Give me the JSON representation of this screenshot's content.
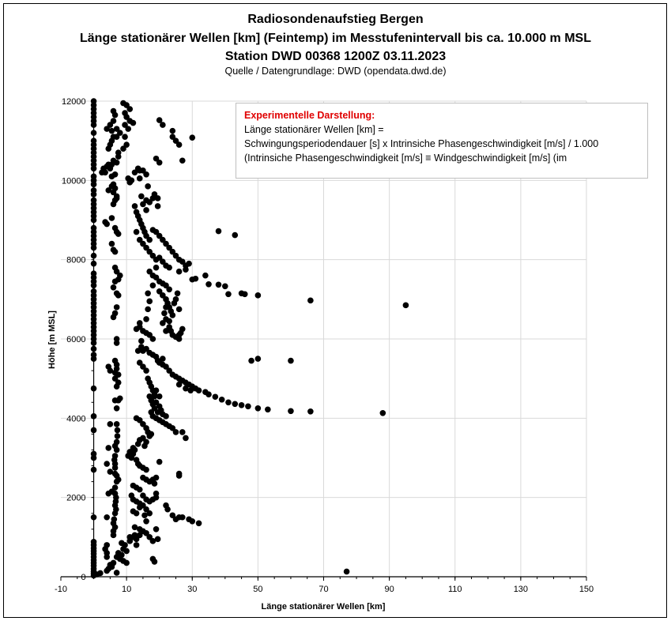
{
  "chart_data": {
    "type": "scatter",
    "title": [
      "Radiosondenaufstieg Bergen",
      "Länge stationärer Wellen [km] (Feintemp) im Messtufenintervall bis ca. 10.000 m MSL",
      "Station DWD 00368 1200Z 03.11.2023"
    ],
    "subtitle": "Quelle / Datengrundlage: DWD (opendata.dwd.de)",
    "xlabel": "Länge stationärer Wellen [km]",
    "ylabel": "Höhe [m MSL]",
    "xlim": [
      -10,
      150
    ],
    "ylim": [
      0,
      12000
    ],
    "xticks": [
      -10,
      10,
      30,
      50,
      70,
      90,
      110,
      130,
      150
    ],
    "yticks": [
      0,
      2000,
      4000,
      6000,
      8000,
      10000,
      12000
    ],
    "grid": true,
    "marker_color": "#000000",
    "annotation": {
      "heading": "Experimentelle Darstellung:",
      "lines": [
        "Länge stationärer Wellen [km] =",
        "Schwingungsperiodendauer [s] x Intrinsiche Phasengeschwindigkeit [m/s]  / 1.000",
        "(Intrinsiche Phasengeschwindigkeit [m/s] ≡ Windgeschwindigkeit [m/s] (im"
      ],
      "heading_color": "#e00000"
    },
    "zero_column_y": [
      30,
      80,
      130,
      200,
      280,
      350,
      420,
      500,
      580,
      650,
      720,
      800,
      880,
      1500,
      2700,
      3000,
      3100,
      3700,
      4050,
      4750,
      5500,
      5600,
      5750,
      5900,
      6000,
      6100,
      6200,
      6300,
      6400,
      6500,
      6600,
      6700,
      6800,
      6900,
      7000,
      7100,
      7200,
      7350,
      7450,
      7550,
      7650,
      7900,
      8100,
      8300,
      8400,
      8500,
      8600,
      8700,
      8800,
      9000,
      9100,
      9200,
      9300,
      9400,
      9500,
      9650,
      9750,
      9900,
      10000,
      10100,
      10300,
      10400,
      10500,
      10600,
      10700,
      10800,
      10900,
      11000,
      11200,
      11400,
      11500,
      11600,
      11700,
      11800,
      11900,
      12000
    ],
    "points": [
      [
        1,
        60
      ],
      [
        2,
        90
      ],
      [
        4,
        150
      ],
      [
        4.5,
        200
      ],
      [
        5,
        300
      ],
      [
        5.5,
        250
      ],
      [
        6,
        350
      ],
      [
        7,
        100
      ],
      [
        4,
        500
      ],
      [
        4,
        600
      ],
      [
        3.5,
        700
      ],
      [
        4,
        800
      ],
      [
        7,
        500
      ],
      [
        7.5,
        600
      ],
      [
        8,
        450
      ],
      [
        8.5,
        550
      ],
      [
        9,
        700
      ],
      [
        9.5,
        800
      ],
      [
        10,
        650
      ],
      [
        9,
        400
      ],
      [
        10,
        350
      ],
      [
        11,
        900
      ],
      [
        12,
        1000
      ],
      [
        13,
        950
      ],
      [
        12.5,
        1050
      ],
      [
        8.5,
        850
      ],
      [
        6,
        1050
      ],
      [
        6,
        1150
      ],
      [
        6.5,
        1250
      ],
      [
        6,
        1350
      ],
      [
        6.2,
        1450
      ],
      [
        4,
        1500
      ],
      [
        6.5,
        1600
      ],
      [
        6.8,
        1700
      ],
      [
        6.5,
        1800
      ],
      [
        6.7,
        1900
      ],
      [
        6.8,
        2000
      ],
      [
        6.5,
        2100
      ],
      [
        4.5,
        2100
      ],
      [
        5.5,
        2150
      ],
      [
        6.5,
        2250
      ],
      [
        7,
        2400
      ],
      [
        7.5,
        2450
      ],
      [
        7,
        2550
      ],
      [
        6.5,
        2600
      ],
      [
        5,
        2650
      ],
      [
        6.5,
        2750
      ],
      [
        6.5,
        2850
      ],
      [
        6.3,
        2950
      ],
      [
        6.5,
        3050
      ],
      [
        4,
        2850
      ],
      [
        4.5,
        3250
      ],
      [
        7,
        3200
      ],
      [
        7,
        3400
      ],
      [
        7.2,
        3550
      ],
      [
        7.2,
        3700
      ],
      [
        7,
        3850
      ],
      [
        5,
        3850
      ],
      [
        6.5,
        3300
      ],
      [
        7,
        4250
      ],
      [
        7.5,
        4450
      ],
      [
        6.5,
        4450
      ],
      [
        8,
        4500
      ],
      [
        7,
        4800
      ],
      [
        7.5,
        4900
      ],
      [
        6.5,
        5000
      ],
      [
        7.5,
        5100
      ],
      [
        6.5,
        5150
      ],
      [
        5,
        5200
      ],
      [
        7,
        5250
      ],
      [
        7,
        5350
      ],
      [
        6.5,
        5450
      ],
      [
        7,
        5900
      ],
      [
        7,
        6000
      ],
      [
        4.5,
        5300
      ],
      [
        6,
        6550
      ],
      [
        6.5,
        6650
      ],
      [
        7,
        6800
      ],
      [
        7.5,
        7100
      ],
      [
        7,
        7150
      ],
      [
        6,
        7300
      ],
      [
        6.5,
        7450
      ],
      [
        7.5,
        7500
      ],
      [
        8,
        7600
      ],
      [
        7,
        7700
      ],
      [
        6.5,
        7800
      ],
      [
        5.5,
        8400
      ],
      [
        6,
        8250
      ],
      [
        6.5,
        8200
      ],
      [
        3.5,
        8950
      ],
      [
        4,
        8900
      ],
      [
        6.5,
        8800
      ],
      [
        7,
        8700
      ],
      [
        7.5,
        8650
      ],
      [
        5.5,
        9050
      ],
      [
        6,
        9400
      ],
      [
        6.5,
        9500
      ],
      [
        7,
        9600
      ],
      [
        6,
        9700
      ],
      [
        6.5,
        9800
      ],
      [
        5.5,
        9850
      ],
      [
        4.5,
        9750
      ],
      [
        7,
        9550
      ],
      [
        6,
        9900
      ],
      [
        5.5,
        10100
      ],
      [
        6.5,
        10150
      ],
      [
        2.5,
        10200
      ],
      [
        3,
        10300
      ],
      [
        3.5,
        10200
      ],
      [
        4,
        10350
      ],
      [
        4.5,
        10400
      ],
      [
        5,
        10300
      ],
      [
        5.5,
        10400
      ],
      [
        6,
        10500
      ],
      [
        7,
        10450
      ],
      [
        4.5,
        10800
      ],
      [
        5,
        10900
      ],
      [
        5.5,
        11000
      ],
      [
        6,
        11100
      ],
      [
        4,
        11300
      ],
      [
        5,
        11400
      ],
      [
        6,
        11500
      ],
      [
        5.5,
        11250
      ],
      [
        6.5,
        11650
      ],
      [
        6,
        11750
      ],
      [
        7,
        11300
      ],
      [
        7,
        11100
      ],
      [
        7.5,
        10700
      ],
      [
        7.5,
        10600
      ],
      [
        8,
        11200
      ],
      [
        9,
        11950
      ],
      [
        10,
        11900
      ],
      [
        10,
        11600
      ],
      [
        9.5,
        11400
      ],
      [
        10.5,
        11300
      ],
      [
        9.5,
        11100
      ],
      [
        11,
        11500
      ],
      [
        10,
        10900
      ],
      [
        9,
        10800
      ],
      [
        11,
        11800
      ],
      [
        12,
        11450
      ],
      [
        9.5,
        11700
      ],
      [
        10.5,
        10050
      ],
      [
        11,
        9950
      ],
      [
        11.5,
        10000
      ],
      [
        12.5,
        10200
      ],
      [
        13.5,
        10300
      ],
      [
        14,
        10250
      ],
      [
        15,
        10250
      ],
      [
        16,
        10150
      ],
      [
        14,
        10050
      ],
      [
        12.5,
        9350
      ],
      [
        13,
        9200
      ],
      [
        13.5,
        9100
      ],
      [
        14,
        9000
      ],
      [
        14.5,
        8900
      ],
      [
        15,
        8800
      ],
      [
        15.5,
        8700
      ],
      [
        16,
        8600
      ],
      [
        17,
        8500
      ],
      [
        18,
        8750
      ],
      [
        19,
        8700
      ],
      [
        20,
        8600
      ],
      [
        21,
        8500
      ],
      [
        22,
        8400
      ],
      [
        23,
        8300
      ],
      [
        24,
        8200
      ],
      [
        25,
        8100
      ],
      [
        26,
        8000
      ],
      [
        27,
        7950
      ],
      [
        28,
        7850
      ],
      [
        29,
        7900
      ],
      [
        28,
        7750
      ],
      [
        26,
        7700
      ],
      [
        14.5,
        9600
      ],
      [
        15,
        9400
      ],
      [
        16,
        9250
      ],
      [
        16,
        9500
      ],
      [
        16.5,
        9850
      ],
      [
        17,
        9450
      ],
      [
        18,
        9550
      ],
      [
        18.5,
        9650
      ],
      [
        19.5,
        9550
      ],
      [
        19.5,
        9350
      ],
      [
        13,
        8700
      ],
      [
        14,
        8500
      ],
      [
        15,
        8400
      ],
      [
        16,
        8300
      ],
      [
        17,
        8200
      ],
      [
        18,
        8100
      ],
      [
        19,
        8000
      ],
      [
        20,
        8050
      ],
      [
        21,
        7950
      ],
      [
        22,
        7850
      ],
      [
        23,
        7800
      ],
      [
        17,
        7700
      ],
      [
        18,
        7600
      ],
      [
        19,
        7550
      ],
      [
        20,
        7450
      ],
      [
        21,
        7400
      ],
      [
        22,
        7350
      ],
      [
        23,
        7250
      ],
      [
        19,
        7800
      ],
      [
        18,
        7350
      ],
      [
        16.5,
        7150
      ],
      [
        17,
        6950
      ],
      [
        16.5,
        6750
      ],
      [
        16,
        6500
      ],
      [
        20,
        7200
      ],
      [
        21,
        7100
      ],
      [
        22,
        7000
      ],
      [
        22.5,
        6900
      ],
      [
        23,
        6800
      ],
      [
        23.5,
        6700
      ],
      [
        24,
        6600
      ],
      [
        22,
        6500
      ],
      [
        21,
        6400
      ],
      [
        23,
        6300
      ],
      [
        22,
        6200
      ],
      [
        24,
        6100
      ],
      [
        25,
        6050
      ],
      [
        26,
        6000
      ],
      [
        26.5,
        6150
      ],
      [
        27,
        6250
      ],
      [
        24.5,
        6900
      ],
      [
        25,
        7000
      ],
      [
        25.5,
        7150
      ],
      [
        26,
        6750
      ],
      [
        22,
        6800
      ],
      [
        21.5,
        6650
      ],
      [
        23,
        6450
      ],
      [
        23.5,
        6200
      ],
      [
        26,
        6100
      ],
      [
        13,
        6250
      ],
      [
        14,
        6300
      ],
      [
        15,
        6200
      ],
      [
        16,
        6150
      ],
      [
        17,
        6100
      ],
      [
        18,
        6000
      ],
      [
        14,
        6400
      ],
      [
        14.5,
        5800
      ],
      [
        15,
        5700
      ],
      [
        16,
        5750
      ],
      [
        17,
        5650
      ],
      [
        18,
        5600
      ],
      [
        19,
        5550
      ],
      [
        19.5,
        5450
      ],
      [
        20,
        5400
      ],
      [
        21,
        5350
      ],
      [
        22,
        5300
      ],
      [
        23,
        5200
      ],
      [
        24,
        5100
      ],
      [
        25,
        5050
      ],
      [
        26,
        5000
      ],
      [
        27,
        4950
      ],
      [
        28,
        4900
      ],
      [
        29,
        4850
      ],
      [
        30,
        4800
      ],
      [
        29.5,
        4700
      ],
      [
        28,
        4750
      ],
      [
        26,
        4850
      ],
      [
        14,
        5400
      ],
      [
        15,
        5300
      ],
      [
        16,
        5200
      ],
      [
        16.5,
        5000
      ],
      [
        17,
        4900
      ],
      [
        13.5,
        5700
      ],
      [
        14.5,
        5950
      ],
      [
        21,
        5500
      ],
      [
        17.5,
        4800
      ],
      [
        18,
        4700
      ],
      [
        18.5,
        4600
      ],
      [
        17,
        4550
      ],
      [
        17.5,
        4450
      ],
      [
        18,
        4350
      ],
      [
        18.5,
        4250
      ],
      [
        17.5,
        4150
      ],
      [
        18,
        4050
      ],
      [
        19,
        4000
      ],
      [
        20,
        3950
      ],
      [
        21,
        3900
      ],
      [
        22,
        3850
      ],
      [
        23,
        3800
      ],
      [
        24,
        3750
      ],
      [
        25,
        3650
      ],
      [
        27,
        3650
      ],
      [
        28,
        3500
      ],
      [
        19,
        4400
      ],
      [
        20,
        4300
      ],
      [
        20.5,
        4200
      ],
      [
        21,
        4100
      ],
      [
        22,
        4050
      ],
      [
        19.5,
        4150
      ],
      [
        18.5,
        4550
      ],
      [
        19,
        4700
      ],
      [
        20,
        4550
      ],
      [
        13,
        4000
      ],
      [
        14,
        3950
      ],
      [
        15,
        3850
      ],
      [
        16,
        3750
      ],
      [
        16.5,
        3650
      ],
      [
        17,
        3550
      ],
      [
        15,
        3500
      ],
      [
        14,
        3450
      ],
      [
        13.5,
        3350
      ],
      [
        12,
        3250
      ],
      [
        11,
        3150
      ],
      [
        10.5,
        3050
      ],
      [
        11.5,
        3000
      ],
      [
        12,
        3100
      ],
      [
        12.5,
        3200
      ],
      [
        13,
        2950
      ],
      [
        13.5,
        2850
      ],
      [
        14,
        2800
      ],
      [
        15,
        2750
      ],
      [
        16,
        2700
      ],
      [
        15.5,
        3300
      ],
      [
        17.5,
        3600
      ],
      [
        16,
        3400
      ],
      [
        20,
        2900
      ],
      [
        26,
        2600
      ],
      [
        26,
        2550
      ],
      [
        15,
        2500
      ],
      [
        16,
        2450
      ],
      [
        17,
        2400
      ],
      [
        18,
        2450
      ],
      [
        19,
        2500
      ],
      [
        18.5,
        2350
      ],
      [
        12,
        2300
      ],
      [
        13,
        2250
      ],
      [
        14,
        2200
      ],
      [
        11.5,
        2050
      ],
      [
        12,
        1950
      ],
      [
        13,
        1900
      ],
      [
        14,
        1850
      ],
      [
        15,
        1800
      ],
      [
        16,
        1700
      ],
      [
        17,
        1600
      ],
      [
        15.5,
        1550
      ],
      [
        16,
        1400
      ],
      [
        15,
        2050
      ],
      [
        16,
        1950
      ],
      [
        17,
        1900
      ],
      [
        18,
        1950
      ],
      [
        19,
        2000
      ],
      [
        19,
        2100
      ],
      [
        22,
        1800
      ],
      [
        22.5,
        1700
      ],
      [
        24,
        1550
      ],
      [
        25,
        1450
      ],
      [
        26,
        1500
      ],
      [
        27,
        1500
      ],
      [
        29,
        1450
      ],
      [
        30,
        1400
      ],
      [
        32,
        1350
      ],
      [
        12,
        1650
      ],
      [
        13,
        1600
      ],
      [
        14,
        1750
      ],
      [
        12.5,
        1250
      ],
      [
        14,
        1200
      ],
      [
        15,
        1150
      ],
      [
        16,
        1100
      ],
      [
        17,
        1000
      ],
      [
        18,
        900
      ],
      [
        19,
        1200
      ],
      [
        19.5,
        950
      ],
      [
        18,
        450
      ],
      [
        18.5,
        380
      ],
      [
        13,
        800
      ],
      [
        14,
        1050
      ],
      [
        11,
        1000
      ],
      [
        77,
        130
      ],
      [
        88,
        4130
      ],
      [
        66,
        4170
      ],
      [
        60,
        4180
      ],
      [
        53,
        4220
      ],
      [
        50,
        4250
      ],
      [
        47,
        4300
      ],
      [
        45,
        4330
      ],
      [
        43,
        4360
      ],
      [
        41,
        4400
      ],
      [
        39,
        4470
      ],
      [
        37,
        4540
      ],
      [
        35,
        4600
      ],
      [
        34,
        4660
      ],
      [
        32,
        4700
      ],
      [
        31,
        4750
      ],
      [
        95,
        6850
      ],
      [
        66,
        6970
      ],
      [
        50,
        7100
      ],
      [
        46,
        7130
      ],
      [
        45,
        7150
      ],
      [
        41,
        7130
      ],
      [
        40,
        7330
      ],
      [
        38,
        7370
      ],
      [
        35,
        7380
      ],
      [
        34,
        7600
      ],
      [
        31,
        7520
      ],
      [
        30,
        7500
      ],
      [
        60,
        5450
      ],
      [
        50,
        5500
      ],
      [
        48,
        5450
      ],
      [
        38,
        8720
      ],
      [
        43,
        8620
      ],
      [
        30,
        11080
      ],
      [
        26,
        10900
      ],
      [
        25,
        11000
      ],
      [
        24,
        11100
      ],
      [
        24,
        11250
      ],
      [
        27,
        10500
      ],
      [
        21,
        11400
      ],
      [
        20,
        11520
      ],
      [
        20,
        10450
      ],
      [
        19,
        10550
      ]
    ]
  }
}
